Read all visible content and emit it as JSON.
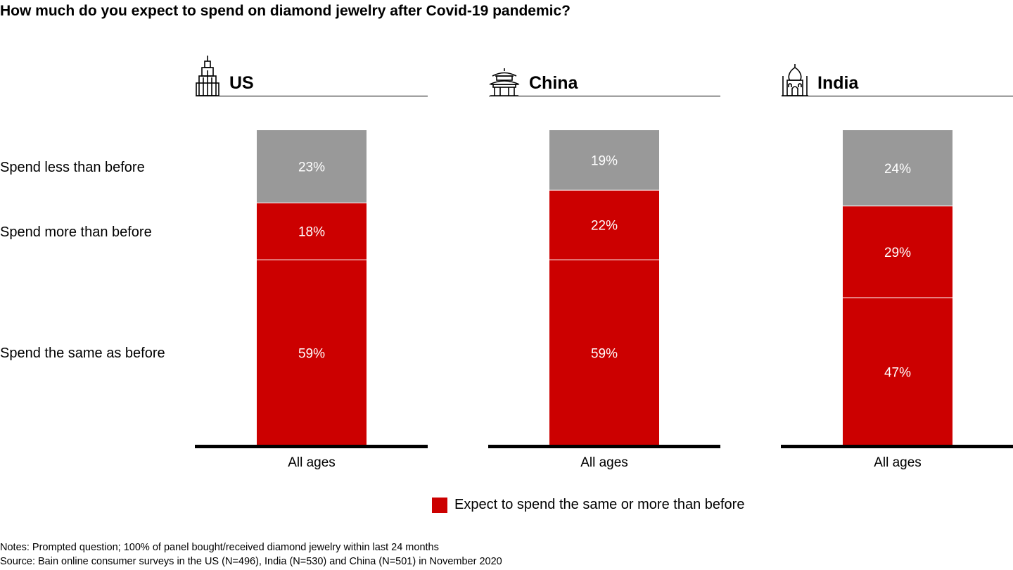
{
  "title": "How much do you expect to spend on diamond jewelry after Covid-19 pandemic?",
  "row_labels": {
    "less": "Spend less than before",
    "more": "Spend more than before",
    "same": "Spend the same as before"
  },
  "legend": {
    "label": "Expect to spend the same or more than before",
    "color": "#cc0000"
  },
  "notes": {
    "line1": "Notes: Prompted question; 100% of panel bought/received diamond jewelry within last 24 months",
    "line2": "Source: Bain online consumer surveys in the US (N=496), India (N=530) and China (N=501) in November 2020"
  },
  "colors": {
    "red": "#cc0000",
    "gray": "#999999"
  },
  "icons": {
    "us": "skyscraper-icon",
    "china": "pagoda-temple-icon",
    "india": "taj-mahal-icon"
  },
  "chart_data": {
    "type": "bar",
    "stacked": true,
    "categories": [
      "All ages"
    ],
    "panels": [
      {
        "name": "US",
        "category": "All ages",
        "same": 59,
        "more": 18,
        "less": 23
      },
      {
        "name": "China",
        "category": "All ages",
        "same": 59,
        "more": 22,
        "less": 19
      },
      {
        "name": "India",
        "category": "All ages",
        "same": 47,
        "more": 29,
        "less": 24
      }
    ],
    "series": [
      {
        "key": "same",
        "label": "Spend the same as before",
        "color": "#cc0000"
      },
      {
        "key": "more",
        "label": "Spend more than before",
        "color": "#cc0000"
      },
      {
        "key": "less",
        "label": "Spend less than before",
        "color": "#999999"
      }
    ],
    "unit": "%",
    "ylim": [
      0,
      100
    ]
  }
}
